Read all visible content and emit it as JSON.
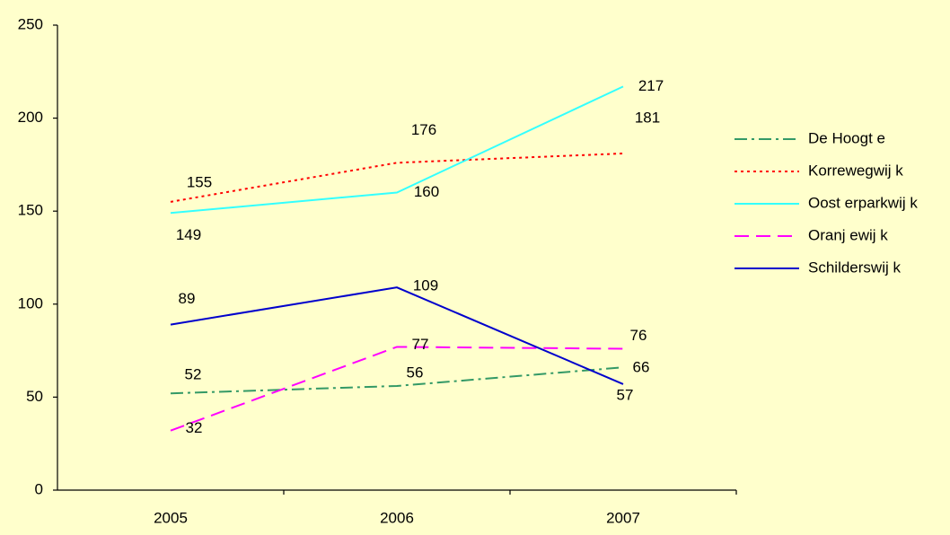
{
  "chart_data": {
    "type": "line",
    "categories": [
      "2005",
      "2006",
      "2007"
    ],
    "ylim": [
      0,
      250
    ],
    "yticks": [
      0,
      50,
      100,
      150,
      200,
      250
    ],
    "series": [
      {
        "name": "De Hoogt e",
        "color": "#339966",
        "dash": "dash-dot",
        "values": [
          52,
          56,
          66
        ]
      },
      {
        "name": "Korrewegwij k",
        "color": "#ff0000",
        "dash": "dot",
        "values": [
          155,
          176,
          181
        ]
      },
      {
        "name": "Oost erparkwij k",
        "color": "#33ffff",
        "dash": "solid",
        "values": [
          149,
          160,
          217
        ]
      },
      {
        "name": "Oranj ewij k",
        "color": "#ff00ff",
        "dash": "dash",
        "values": [
          32,
          77,
          76
        ]
      },
      {
        "name": "Schilderswij k",
        "color": "#0000cc",
        "dash": "solid",
        "values": [
          89,
          109,
          57
        ]
      }
    ],
    "legend": "right",
    "background": "#ffffcc"
  }
}
